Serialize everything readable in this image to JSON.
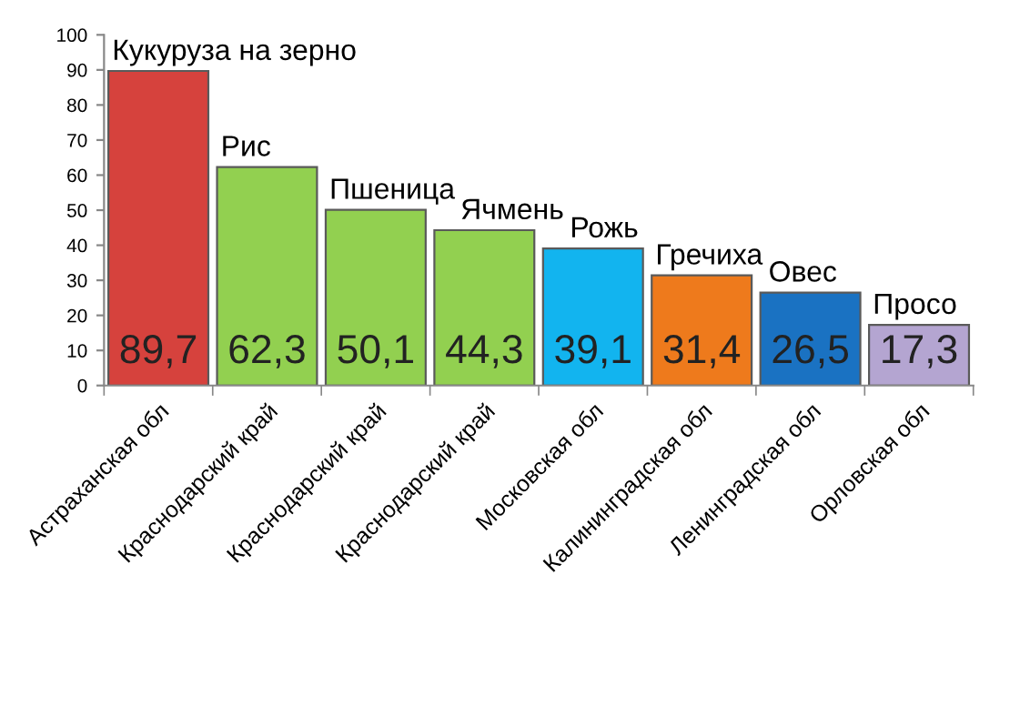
{
  "chart_data": {
    "type": "bar",
    "categories": [
      "Астраханская обл",
      "Краснодарский край",
      "Краснодарский край",
      "Краснодарский край",
      "Московская обл",
      "Калининградская обл",
      "Ленинградская обл",
      "Орловская обл"
    ],
    "values": [
      89.7,
      62.3,
      50.1,
      44.3,
      39.1,
      31.4,
      26.5,
      17.3
    ],
    "colors": [
      "#d6423d",
      "#92d050",
      "#92d050",
      "#92d050",
      "#12b4ef",
      "#ee7a1c",
      "#1a72c2",
      "#b4a5d1"
    ],
    "value_labels": [
      "89,7",
      "62,3",
      "50,1",
      "44,3",
      "39,1",
      "31,4",
      "26,5",
      "17,3"
    ],
    "annotations": [
      "Кукуруза на зерно",
      "Рис",
      "Пшеница",
      "Ячмень",
      "Рожь",
      "Гречиха",
      "Овес",
      "Просо"
    ],
    "ylim": [
      0,
      100
    ],
    "yticks": [
      0,
      10,
      20,
      30,
      40,
      50,
      60,
      70,
      80,
      90,
      100
    ]
  }
}
